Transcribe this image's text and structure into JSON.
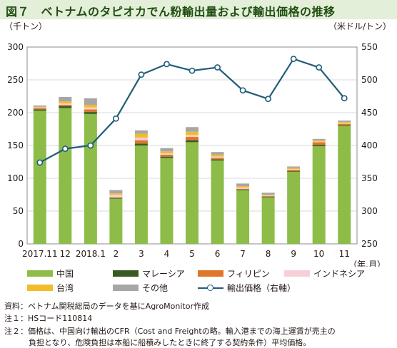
{
  "title": "図７　ベトナムのタピオカでん粉輸出量および輸出価格の推移",
  "unit_left": "（千トン）",
  "unit_right": "（米ドル/トン）",
  "x_axis_suffix": "（年.月）",
  "legend": [
    {
      "label": "中国",
      "color": "#8dbc49",
      "type": "bar"
    },
    {
      "label": "マレーシア",
      "color": "#3a5a24",
      "type": "bar"
    },
    {
      "label": "フィリピン",
      "color": "#e0762a",
      "type": "bar"
    },
    {
      "label": "インドネシア",
      "color": "#f6cfd7",
      "type": "bar"
    },
    {
      "label": "台湾",
      "color": "#f2bb2a",
      "type": "bar"
    },
    {
      "label": "その他",
      "color": "#a6a6a6",
      "type": "bar"
    },
    {
      "label": "輸出価格（右軸）",
      "color": "#205d79",
      "type": "line"
    }
  ],
  "notes": {
    "source": "資料：ベトナム関税総局のデータを基にAgroMonitor作成",
    "note1": "注１：HSコード110814",
    "note2_line1": "注２：価格は、中国向け輸出のCFR（Cost and Freightの略。輸入港までの海上運賃が売主の",
    "note2_line2": "負担となり、危険負担は本船に船積みしたときに終了する契約条件）平均価格。"
  },
  "chart_data": {
    "type": "bar",
    "categories": [
      "2017.11",
      "12",
      "2018.1",
      "2",
      "3",
      "4",
      "5",
      "6",
      "7",
      "8",
      "9",
      "10",
      "11"
    ],
    "series": [
      {
        "name": "中国",
        "values": [
          203,
          207,
          198,
          69,
          150,
          131,
          155,
          127,
          82,
          71,
          110,
          149,
          180
        ],
        "color": "#8dbc49"
      },
      {
        "name": "マレーシア",
        "values": [
          2,
          3,
          3,
          1,
          3,
          2,
          3,
          2,
          1,
          1,
          1,
          2,
          1
        ],
        "color": "#3a5a24"
      },
      {
        "name": "フィリピン",
        "values": [
          2,
          2,
          4,
          1,
          5,
          3,
          5,
          2,
          1,
          1,
          2,
          4,
          2
        ],
        "color": "#e0762a"
      },
      {
        "name": "インドネシア",
        "values": [
          1,
          2,
          3,
          4,
          4,
          2,
          3,
          2,
          2,
          1,
          1,
          1,
          1
        ],
        "color": "#f6cfd7"
      },
      {
        "name": "台湾",
        "values": [
          1,
          3,
          4,
          2,
          6,
          3,
          5,
          3,
          2,
          1,
          2,
          2,
          2
        ],
        "color": "#f2bb2a"
      },
      {
        "name": "その他",
        "values": [
          2,
          7,
          10,
          5,
          5,
          5,
          7,
          4,
          4,
          3,
          2,
          2,
          2
        ],
        "color": "#a6a6a6"
      }
    ],
    "line": {
      "name": "輸出価格（右軸）",
      "values": [
        374,
        395,
        400,
        441,
        508,
        524,
        514,
        519,
        484,
        471,
        532,
        519,
        472
      ],
      "color": "#205d79"
    },
    "yleft": {
      "min": 0,
      "max": 300,
      "step": 50
    },
    "yright": {
      "min": 250,
      "max": 550,
      "step": 50
    },
    "grid": true
  }
}
